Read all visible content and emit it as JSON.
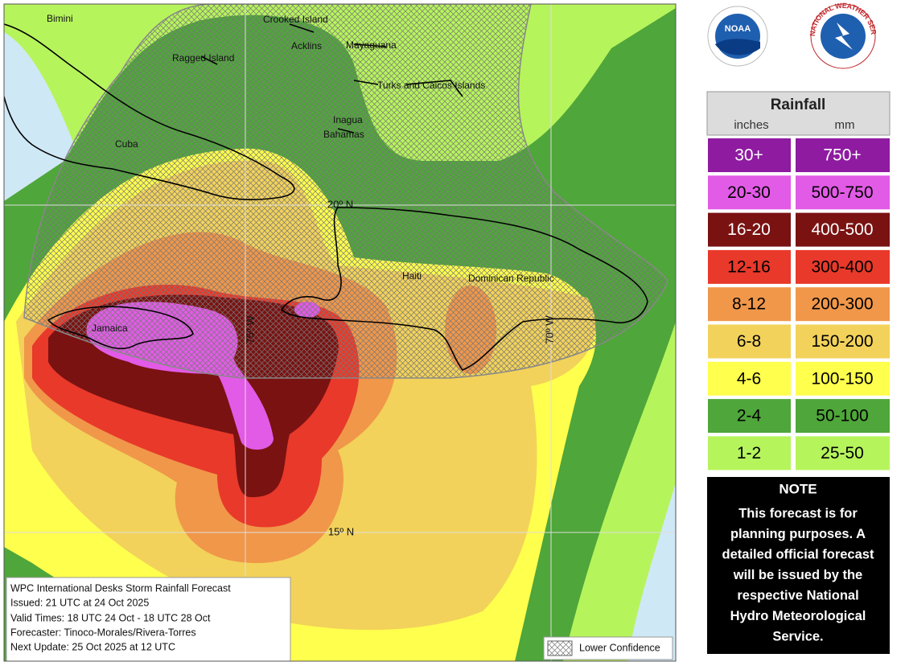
{
  "map_labels": [
    "Bimini",
    "Crooked Island",
    "Acklins",
    "Mayaguana",
    "Ragged Island",
    "Turks and Caicos Islands",
    "Inagua",
    "Bahamas",
    "Cuba",
    "Haiti",
    "Dominican Republic",
    "Jamaica"
  ],
  "grid_labels": [
    "20º N",
    "75º W",
    "70º W",
    "15º N"
  ],
  "info_box": [
    "WPC International Desks Storm Rainfall Forecast",
    "Issued: 21 UTC at 24 Oct 2025",
    "Valid Times: 18 UTC 24 Oct - 18 UTC 28 Oct",
    "Forecaster: Tinoco-Morales/Rivera-Torres",
    "Next Update: 25 Oct 2025 at 12 UTC"
  ],
  "hatch_legend": "Lower Confidence",
  "logos": {
    "noaa": "NOAA",
    "nws": "NATIONAL WEATHER SERVICE"
  },
  "legend": {
    "title": "Rainfall",
    "units": [
      "inches",
      "mm"
    ],
    "rows": [
      {
        "inches": "30+",
        "mm": "750+",
        "color": "#8e1ba0",
        "text_color": "#ffffff"
      },
      {
        "inches": "20-30",
        "mm": "500-750",
        "color": "#e25be6",
        "text_color": "#000000"
      },
      {
        "inches": "16-20",
        "mm": "400-500",
        "color": "#7a1212",
        "text_color": "#ffffff"
      },
      {
        "inches": "12-16",
        "mm": "300-400",
        "color": "#e8392a",
        "text_color": "#000000"
      },
      {
        "inches": "8-12",
        "mm": "200-300",
        "color": "#f0974a",
        "text_color": "#000000"
      },
      {
        "inches": "6-8",
        "mm": "150-200",
        "color": "#f2d25a",
        "text_color": "#000000"
      },
      {
        "inches": "4-6",
        "mm": "100-150",
        "color": "#ffff4d",
        "text_color": "#000000"
      },
      {
        "inches": "2-4",
        "mm": "50-100",
        "color": "#4fa63a",
        "text_color": "#000000"
      },
      {
        "inches": "1-2",
        "mm": "25-50",
        "color": "#b6f45c",
        "text_color": "#000000"
      }
    ]
  },
  "note": {
    "title": "NOTE",
    "lines": [
      "This forecast is for",
      "planning purposes. A",
      "detailed official forecast",
      "will be issued by the",
      "respective National",
      "Hydro Meteorological",
      "Service."
    ]
  }
}
